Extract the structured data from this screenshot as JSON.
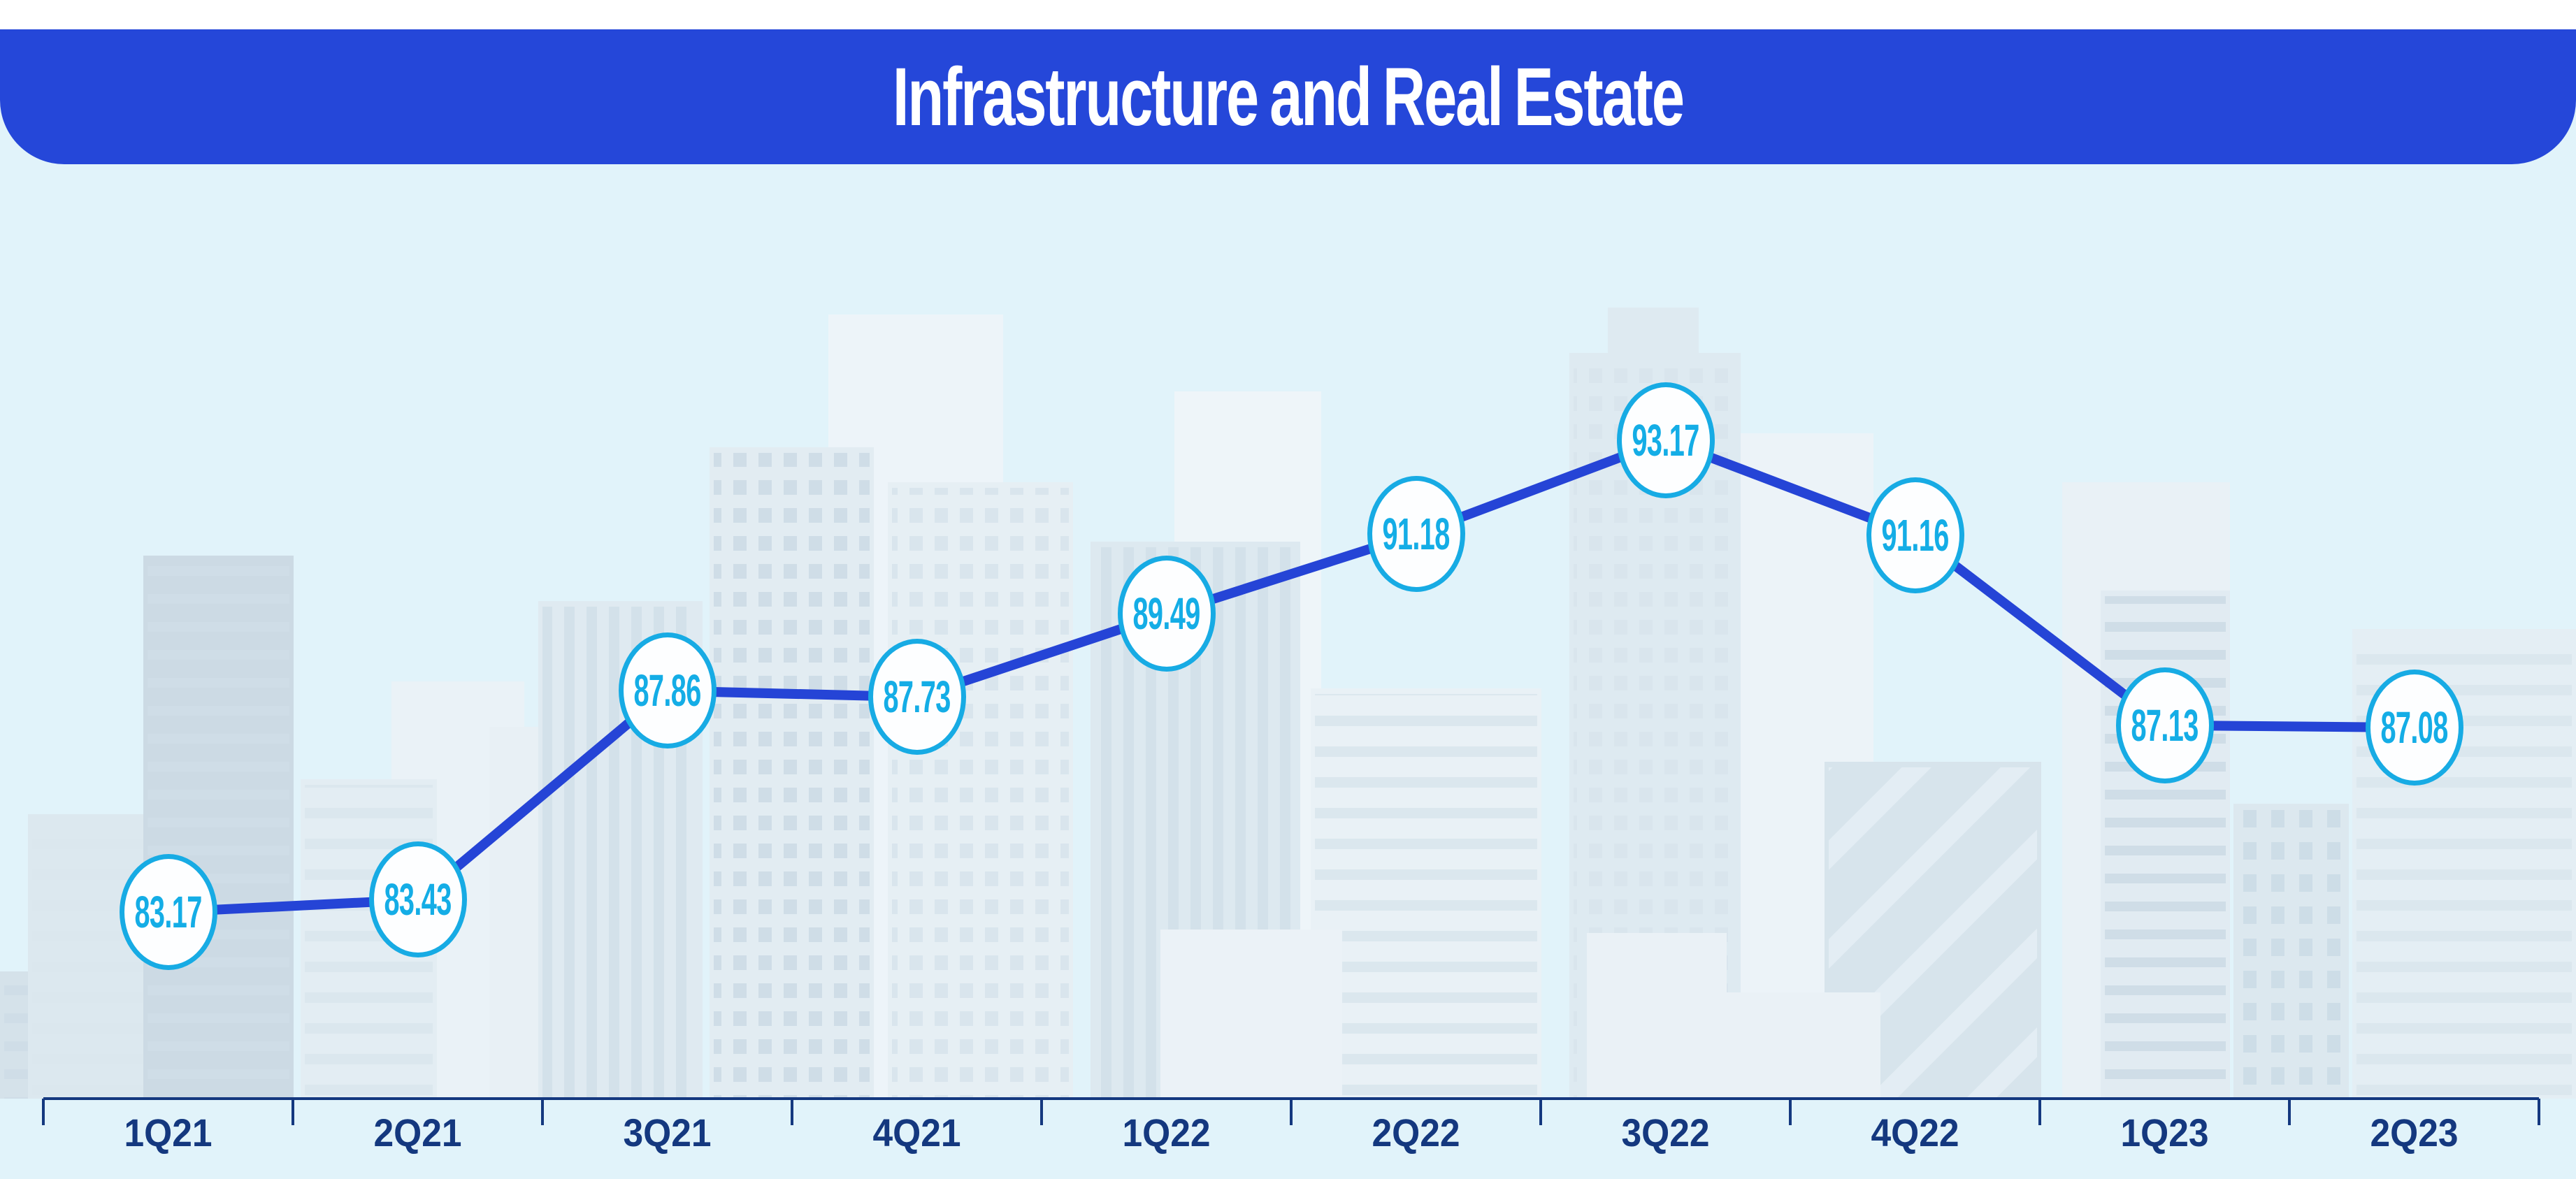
{
  "title_banner": {
    "text": "Infrastructure and Real Estate",
    "background_color": "#2547d9",
    "text_color": "#ffffff"
  },
  "background_illustration": "city-skyline",
  "colors": {
    "banner_blue": "#2547d9",
    "line_blue": "#2544d6",
    "marker_ring_cyan": "#17abe4",
    "value_text_cyan": "#14ade6",
    "axis_navy": "#14387f",
    "sky_light_blue": "#e1f3fa",
    "marker_fill": "#fdfeff"
  },
  "chart_data": {
    "type": "line",
    "title": "Infrastructure and Real Estate",
    "categories": [
      "1Q21",
      "2Q21",
      "3Q21",
      "4Q21",
      "1Q22",
      "2Q22",
      "3Q22",
      "4Q22",
      "1Q23",
      "2Q23"
    ],
    "values": [
      83.17,
      83.43,
      87.86,
      87.73,
      89.49,
      91.18,
      93.17,
      91.16,
      87.13,
      87.08
    ],
    "value_labels": [
      "83.17",
      "83.43",
      "87.86",
      "87.73",
      "89.49",
      "91.18",
      "93.17",
      "91.16",
      "87.13",
      "87.08"
    ],
    "xlabel": "",
    "ylabel": "",
    "ylim": [
      81.5,
      95.5
    ],
    "grid": false,
    "legend_position": "none",
    "point_labels_visible": true,
    "marker_style": "circled-value-badge"
  }
}
